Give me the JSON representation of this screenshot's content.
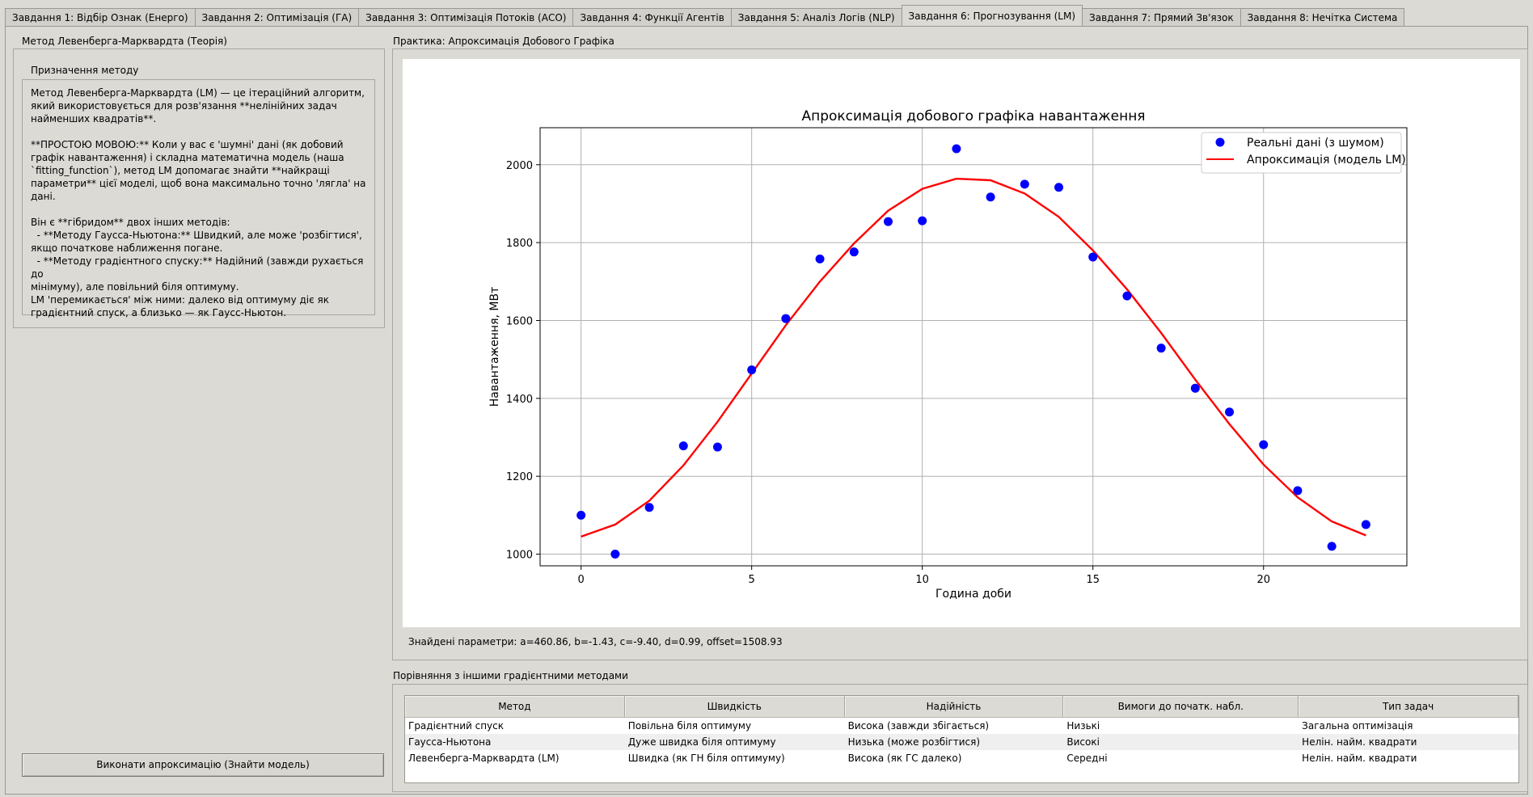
{
  "tabs": [
    {
      "label": "Завдання 1: Відбір Ознак (Енерго)",
      "active": false
    },
    {
      "label": "Завдання 2: Оптимізація (ГА)",
      "active": false
    },
    {
      "label": "Завдання 3: Оптимізація Потоків (АСО)",
      "active": false
    },
    {
      "label": "Завдання 4: Функції Агентів",
      "active": false
    },
    {
      "label": "Завдання 5: Аналіз Логів (NLP)",
      "active": false
    },
    {
      "label": "Завдання 6: Прогнозування (LM)",
      "active": true
    },
    {
      "label": "Завдання 7: Прямий Зв'язок",
      "active": false
    },
    {
      "label": "Завдання 8: Нечітка Система",
      "active": false
    }
  ],
  "left": {
    "title": "Метод Левенберга-Марквардта (Теорія)",
    "purpose_title": "Призначення методу",
    "purpose_text": "Метод Левенберга-Марквардта (LM) — це ітераційний алгоритм,\nякий використовується для розв'язання **нелінійних задач\nнайменших квадратів**.\n\n**ПРОСТОЮ МОВОЮ:** Коли у вас є 'шумні' дані (як добовий\nграфік навантаження) і складна математична модель (наша\n`fitting_function`), метод LM допомагає знайти **найкращі\nпараметри** цієї моделі, щоб вона максимально точно 'лягла' на\nдані.\n\nВін є **гібридом** двох інших методів:\n  - **Методу Гаусса-Ньютона:** Швидкий, але може 'розбігтися',\nякщо початкове наближення погане.\n  - **Методу градієнтного спуску:** Надійний (завжди рухається до\nмінімуму), але повільний біля оптимуму.\nLM 'перемикається' між ними: далеко від оптимуму діє як\nградієнтний спуск, а близько — як Гаусс-Ньютон.",
    "run_button": "Виконати апроксимацію (Знайти модель)"
  },
  "practice": {
    "title": "Практика: Апроксимація Добового Графіка",
    "params_text": "Знайдені параметри: a=460.86, b=-1.43, c=-9.40, d=0.99, offset=1508.93"
  },
  "chart_data": {
    "type": "scatter",
    "title": "Апроксимація добового графіка навантаження",
    "xlabel": "Година доби",
    "ylabel": "Навантаження, МВт",
    "xlim": [
      -1.2,
      24.2
    ],
    "ylim": [
      970,
      2095
    ],
    "xticks": [
      0,
      5,
      10,
      15,
      20
    ],
    "yticks": [
      1000,
      1200,
      1400,
      1600,
      1800,
      2000
    ],
    "grid": true,
    "legend_position": "top-right",
    "series": [
      {
        "name": "Реальні дані (з шумом)",
        "kind": "scatter",
        "color": "#0000ff",
        "x": [
          0,
          1,
          2,
          3,
          4,
          5,
          6,
          7,
          8,
          9,
          10,
          11,
          12,
          13,
          14,
          15,
          16,
          17,
          18,
          19,
          20,
          21,
          22,
          23
        ],
        "y": [
          1100,
          1000,
          1120,
          1278,
          1275,
          1473,
          1605,
          1758,
          1776,
          1854,
          1856,
          2041,
          1917,
          1950,
          1942,
          1763,
          1663,
          1529,
          1426,
          1365,
          1281,
          1163,
          1020,
          1076
        ]
      },
      {
        "name": "Апроксимація (модель LM)",
        "kind": "line",
        "color": "#ff0000",
        "x": [
          0,
          1,
          2,
          3,
          4,
          5,
          6,
          7,
          8,
          9,
          10,
          11,
          12,
          13,
          14,
          15,
          16,
          17,
          18,
          19,
          20,
          21,
          22,
          23
        ],
        "y": [
          1045,
          1076,
          1137,
          1228,
          1340,
          1464,
          1588,
          1700,
          1798,
          1882,
          1938,
          1964,
          1960,
          1926,
          1866,
          1780,
          1680,
          1568,
          1448,
          1334,
          1230,
          1146,
          1084,
          1048
        ]
      }
    ]
  },
  "comparison": {
    "title": "Порівняння з іншими градієнтними методами",
    "columns": [
      "Метод",
      "Швидкість",
      "Надійність",
      "Вимоги до початк. набл.",
      "Тип задач"
    ],
    "rows": [
      [
        "Градієнтний спуск",
        "Повільна біля оптимуму",
        "Висока (завжди збігається)",
        "Низькі",
        "Загальна оптимізація"
      ],
      [
        "Гаусса-Ньютона",
        "Дуже швидка біля оптимуму",
        "Низька (може розбігтися)",
        "Високі",
        "Нелін. найм. квадрати"
      ],
      [
        "Левенберга-Марквардта (LM)",
        "Швидка (як ГН біля оптимуму)",
        "Висока (як ГС далеко)",
        "Середні",
        "Нелін. найм. квадрати"
      ]
    ]
  }
}
